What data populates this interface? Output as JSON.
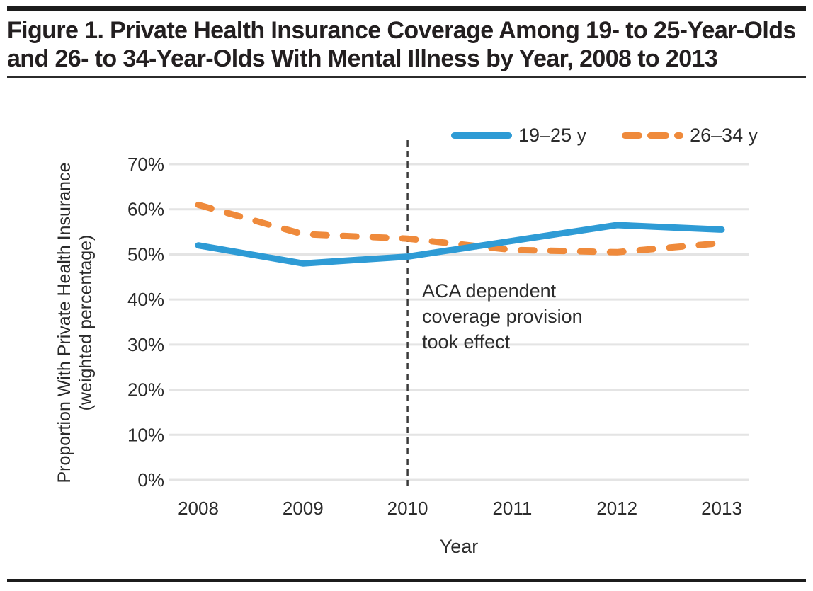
{
  "figure": {
    "title": "Figure 1. Private Health Insurance Coverage Among 19- to 25-Year-Olds and 26- to 34-Year-Olds With Mental Illness by Year, 2008 to 2013"
  },
  "axes": {
    "y_title_line1": "Proportion With Private Health Insurance",
    "y_title_line2": "(weighted percentage)",
    "x_title": "Year"
  },
  "annotation": {
    "lines": [
      "ACA dependent",
      "coverage provision",
      "took effect"
    ]
  },
  "colors": {
    "series1": "#2E9BD5",
    "series2": "#EF8A3B",
    "grid": "#E4E4E4",
    "annotation_line": "#3A3A3A",
    "text": "#2B2B2B",
    "rule": "#1C1C1C"
  },
  "chart_data": {
    "type": "line",
    "title": "Figure 1. Private Health Insurance Coverage Among 19- to 25-Year-Olds and 26- to 34-Year-Olds With Mental Illness by Year, 2008 to 2013",
    "xlabel": "Year",
    "ylabel": "Proportion With Private Health Insurance (weighted percentage)",
    "categories": [
      "2008",
      "2009",
      "2010",
      "2011",
      "2012",
      "2013"
    ],
    "series": [
      {
        "name": "19–25 y",
        "style": "solid",
        "color": "#2E9BD5",
        "values": [
          52,
          48,
          49.5,
          53,
          56.5,
          55.5
        ]
      },
      {
        "name": "26–34 y",
        "style": "dashed",
        "color": "#EF8A3B",
        "values": [
          61,
          54.5,
          53.5,
          51,
          50.5,
          52.5
        ]
      }
    ],
    "ylim": [
      0,
      75
    ],
    "yticks": [
      "0%",
      "10%",
      "20%",
      "30%",
      "40%",
      "50%",
      "60%",
      "70%"
    ],
    "grid": "horizontal",
    "legend_position": "top-right",
    "annotation": {
      "text": "ACA dependent coverage provision took effect",
      "x": "2010",
      "marker": "vertical-dashed-line"
    }
  }
}
